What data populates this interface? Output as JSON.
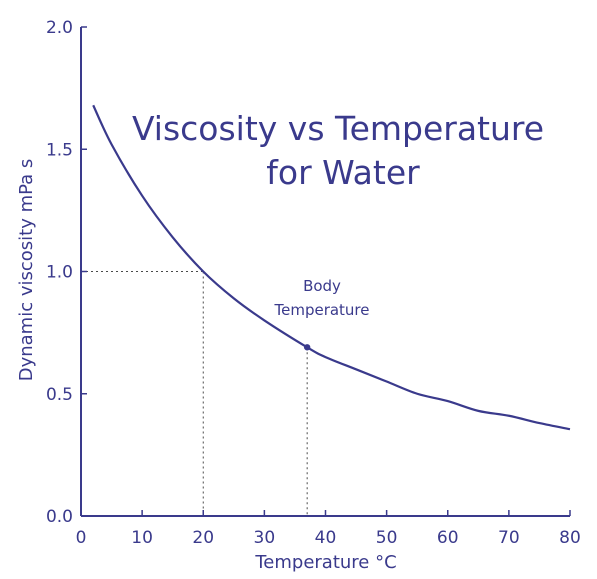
{
  "chart_data": {
    "type": "line",
    "title_lines": [
      "Viscosity vs Temperature",
      "for Water"
    ],
    "xlabel": "Temperature °C",
    "ylabel": "Dynamic viscosity mPa s",
    "xlim": [
      0,
      80
    ],
    "ylim": [
      0,
      2.0
    ],
    "x_ticks": [
      0,
      10,
      20,
      30,
      40,
      50,
      60,
      70,
      80
    ],
    "y_ticks": [
      0.0,
      0.5,
      1.0,
      1.5,
      2.0
    ],
    "x_tick_labels": [
      "0",
      "10",
      "20",
      "30",
      "40",
      "50",
      "60",
      "70",
      "80"
    ],
    "y_tick_labels": [
      "0.0",
      "0.5",
      "1.0",
      "1.5",
      "2.0"
    ],
    "grid": false,
    "series": [
      {
        "color": "#3a3a8c",
        "x": [
          2,
          5,
          10,
          15,
          20,
          25,
          30,
          37,
          40,
          45,
          50,
          55,
          60,
          65,
          70,
          75,
          80
        ],
        "y": [
          1.68,
          1.52,
          1.31,
          1.14,
          1.0,
          0.89,
          0.8,
          0.69,
          0.65,
          0.6,
          0.55,
          0.5,
          0.47,
          0.43,
          0.41,
          0.38,
          0.355
        ]
      }
    ],
    "annotations": [
      {
        "text_lines": [
          "Body",
          "Temperature"
        ],
        "x": 37,
        "y": 0.69
      }
    ],
    "reference_points": [
      {
        "x": 20,
        "y": 1.0
      },
      {
        "x": 37,
        "y": 0.69
      }
    ]
  }
}
